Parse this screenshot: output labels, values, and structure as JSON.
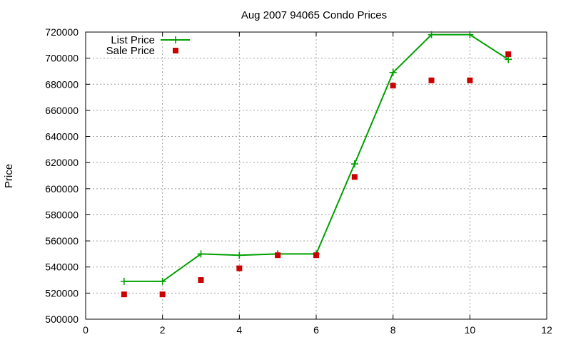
{
  "chart_data": {
    "type": "line",
    "title": "Aug 2007 94065 Condo Prices",
    "xlabel": "",
    "ylabel": "Price",
    "xlim": [
      0,
      12
    ],
    "ylim": [
      500000,
      720000
    ],
    "xticks": [
      0,
      2,
      4,
      6,
      8,
      10,
      12
    ],
    "yticks": [
      500000,
      520000,
      540000,
      560000,
      580000,
      600000,
      620000,
      640000,
      660000,
      680000,
      700000,
      720000
    ],
    "grid": true,
    "legend_position": "top-left",
    "series": [
      {
        "name": "List Price",
        "style": "line+cross",
        "color": "#00a000",
        "x": [
          1,
          2,
          3,
          4,
          5,
          6,
          7,
          8,
          9,
          10,
          11
        ],
        "y": [
          529000,
          529000,
          550000,
          549000,
          550000,
          550000,
          619000,
          689000,
          718000,
          718000,
          699000
        ]
      },
      {
        "name": "Sale Price",
        "style": "square-points",
        "color": "#cc0000",
        "x": [
          1,
          2,
          3,
          4,
          5,
          6,
          7,
          8,
          9,
          10,
          11
        ],
        "y": [
          519000,
          519000,
          530000,
          539000,
          549000,
          549000,
          609000,
          679000,
          683000,
          683000,
          703000
        ]
      }
    ]
  }
}
